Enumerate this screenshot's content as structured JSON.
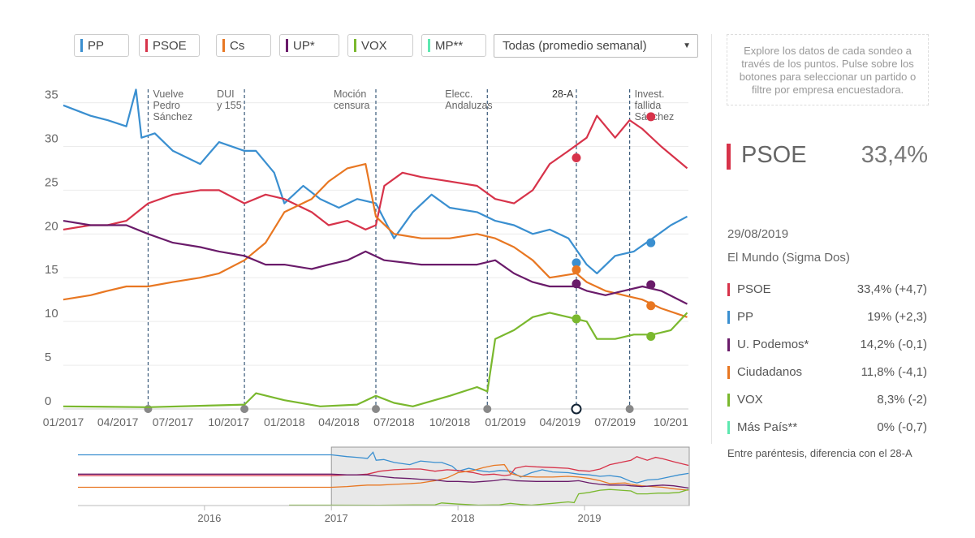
{
  "filters": [
    {
      "label": "PP",
      "color": "#3a8fd0"
    },
    {
      "label": "PSOE",
      "color": "#d7334a"
    },
    {
      "label": "Cs",
      "color": "#e87722"
    },
    {
      "label": "UP*",
      "color": "#6a1b6a"
    },
    {
      "label": "VOX",
      "color": "#7ab82e"
    },
    {
      "label": "MP**",
      "color": "#5de8b0"
    }
  ],
  "select": {
    "value": "Todas (promedio semanal)"
  },
  "help_text": "Explore los datos de cada sondeo a través de los puntos. Pulse sobre los botones para seleccionar un partido o filtre por empresa encuestadora.",
  "highlight": {
    "party": "PSOE",
    "value": "33,4%",
    "color": "#d7334a"
  },
  "poll": {
    "date": "29/08/2019",
    "source": "El Mundo (Sigma Dos)",
    "rows": [
      {
        "name": "PSOE",
        "value": "33,4% (+4,7)",
        "color": "#d7334a"
      },
      {
        "name": "PP",
        "value": "19% (+2,3)",
        "color": "#3a8fd0"
      },
      {
        "name": "U. Podemos*",
        "value": "14,2% (-0,1)",
        "color": "#6a1b6a"
      },
      {
        "name": "Ciudadanos",
        "value": "11,8% (-4,1)",
        "color": "#e87722"
      },
      {
        "name": "VOX",
        "value": "8,3% (-2)",
        "color": "#7ab82e"
      },
      {
        "name": "Más País**",
        "value": "0% (-0,7)",
        "color": "#5de8b0"
      }
    ]
  },
  "note": "Entre paréntesis, diferencia con el 28-A",
  "chart_data": {
    "type": "line",
    "ylim": [
      0,
      37
    ],
    "xlim": [
      "2017-01-01",
      "2019-10-30"
    ],
    "yticks": [
      0,
      5,
      10,
      15,
      20,
      25,
      30,
      35
    ],
    "xticks": [
      {
        "date": "2017-01-01",
        "label": "01/2017"
      },
      {
        "date": "2017-04-01",
        "label": "04/2017"
      },
      {
        "date": "2017-07-01",
        "label": "07/2017"
      },
      {
        "date": "2017-10-01",
        "label": "10/2017"
      },
      {
        "date": "2018-01-01",
        "label": "01/2018"
      },
      {
        "date": "2018-04-01",
        "label": "04/2018"
      },
      {
        "date": "2018-07-01",
        "label": "07/2018"
      },
      {
        "date": "2018-10-01",
        "label": "10/2018"
      },
      {
        "date": "2019-01-01",
        "label": "01/2019"
      },
      {
        "date": "2019-04-01",
        "label": "04/2019"
      },
      {
        "date": "2019-07-01",
        "label": "07/2019"
      },
      {
        "date": "2019-10-01",
        "label": "10/201"
      }
    ],
    "events": [
      {
        "date": "2017-05-21",
        "lines": [
          "Vuelve",
          "Pedro",
          "Sánchez"
        ]
      },
      {
        "date": "2017-10-27",
        "lines": [
          "DUI",
          "y 155"
        ]
      },
      {
        "date": "2018-06-01",
        "lines": [
          "Moción",
          "censura"
        ]
      },
      {
        "date": "2018-12-02",
        "lines": [
          "Elecc.",
          "Andaluzas"
        ]
      },
      {
        "date": "2019-04-28",
        "lines": [
          "28-A"
        ]
      },
      {
        "date": "2019-07-25",
        "lines": [
          "Invest.",
          "fallida",
          "Sánchez"
        ]
      }
    ],
    "series": [
      {
        "name": "PP",
        "color": "#3a8fd0",
        "points": [
          [
            "2017-01-01",
            34.7
          ],
          [
            "2017-02-15",
            33.5
          ],
          [
            "2017-03-15",
            33
          ],
          [
            "2017-04-15",
            32.3
          ],
          [
            "2017-05-01",
            36.5
          ],
          [
            "2017-05-10",
            31
          ],
          [
            "2017-06-01",
            31.5
          ],
          [
            "2017-07-01",
            29.5
          ],
          [
            "2017-08-15",
            28
          ],
          [
            "2017-09-15",
            30.5
          ],
          [
            "2017-10-27",
            29.5
          ],
          [
            "2017-11-15",
            29.5
          ],
          [
            "2017-12-15",
            27
          ],
          [
            "2018-01-01",
            23.5
          ],
          [
            "2018-02-01",
            25.5
          ],
          [
            "2018-03-01",
            24
          ],
          [
            "2018-04-01",
            23
          ],
          [
            "2018-05-01",
            24
          ],
          [
            "2018-06-01",
            23.5
          ],
          [
            "2018-07-01",
            19.5
          ],
          [
            "2018-08-01",
            22.5
          ],
          [
            "2018-09-01",
            24.5
          ],
          [
            "2018-10-01",
            23
          ],
          [
            "2018-11-15",
            22.5
          ],
          [
            "2018-12-15",
            21.5
          ],
          [
            "2019-01-15",
            21
          ],
          [
            "2019-02-15",
            20
          ],
          [
            "2019-03-15",
            20.5
          ],
          [
            "2019-04-15",
            19.5
          ],
          [
            "2019-05-15",
            16.5
          ],
          [
            "2019-06-01",
            15.5
          ],
          [
            "2019-07-01",
            17.5
          ],
          [
            "2019-08-01",
            18
          ],
          [
            "2019-09-01",
            19.5
          ],
          [
            "2019-10-01",
            21
          ],
          [
            "2019-10-28",
            22
          ]
        ]
      },
      {
        "name": "PSOE",
        "color": "#d7334a",
        "points": [
          [
            "2017-01-01",
            20.5
          ],
          [
            "2017-02-15",
            21
          ],
          [
            "2017-03-15",
            21
          ],
          [
            "2017-04-15",
            21.5
          ],
          [
            "2017-05-21",
            23.5
          ],
          [
            "2017-07-01",
            24.5
          ],
          [
            "2017-08-15",
            25
          ],
          [
            "2017-09-15",
            25
          ],
          [
            "2017-10-27",
            23.5
          ],
          [
            "2017-12-01",
            24.5
          ],
          [
            "2018-01-01",
            24
          ],
          [
            "2018-02-15",
            22.5
          ],
          [
            "2018-03-15",
            21
          ],
          [
            "2018-04-15",
            21.5
          ],
          [
            "2018-05-15",
            20.5
          ],
          [
            "2018-06-01",
            21
          ],
          [
            "2018-06-15",
            25.5
          ],
          [
            "2018-07-15",
            27
          ],
          [
            "2018-08-15",
            26.5
          ],
          [
            "2018-10-01",
            26
          ],
          [
            "2018-11-15",
            25.5
          ],
          [
            "2018-12-15",
            24
          ],
          [
            "2019-01-15",
            23.5
          ],
          [
            "2019-02-15",
            25
          ],
          [
            "2019-03-15",
            28
          ],
          [
            "2019-04-15",
            29.5
          ],
          [
            "2019-05-15",
            31
          ],
          [
            "2019-06-01",
            33.5
          ],
          [
            "2019-07-01",
            31
          ],
          [
            "2019-07-25",
            33
          ],
          [
            "2019-08-15",
            32
          ],
          [
            "2019-09-15",
            30
          ],
          [
            "2019-10-28",
            27.5
          ]
        ]
      },
      {
        "name": "Cs",
        "color": "#e87722",
        "points": [
          [
            "2017-01-01",
            12.5
          ],
          [
            "2017-02-15",
            13
          ],
          [
            "2017-03-15",
            13.5
          ],
          [
            "2017-04-15",
            14
          ],
          [
            "2017-05-21",
            14
          ],
          [
            "2017-07-01",
            14.5
          ],
          [
            "2017-08-15",
            15
          ],
          [
            "2017-09-15",
            15.5
          ],
          [
            "2017-10-27",
            17
          ],
          [
            "2017-12-01",
            19
          ],
          [
            "2018-01-01",
            22.5
          ],
          [
            "2018-02-15",
            24
          ],
          [
            "2018-03-15",
            26
          ],
          [
            "2018-04-15",
            27.5
          ],
          [
            "2018-05-15",
            28
          ],
          [
            "2018-06-01",
            22
          ],
          [
            "2018-07-01",
            20
          ],
          [
            "2018-08-15",
            19.5
          ],
          [
            "2018-10-01",
            19.5
          ],
          [
            "2018-11-15",
            20
          ],
          [
            "2018-12-15",
            19.5
          ],
          [
            "2019-01-15",
            18.5
          ],
          [
            "2019-02-15",
            17
          ],
          [
            "2019-03-15",
            15
          ],
          [
            "2019-04-28",
            15.5
          ],
          [
            "2019-05-15",
            14.5
          ],
          [
            "2019-06-15",
            13.5
          ],
          [
            "2019-07-15",
            13
          ],
          [
            "2019-08-15",
            12.5
          ],
          [
            "2019-09-15",
            11.5
          ],
          [
            "2019-10-28",
            10.5
          ]
        ]
      },
      {
        "name": "UP*",
        "color": "#6a1b6a",
        "points": [
          [
            "2017-01-01",
            21.5
          ],
          [
            "2017-02-15",
            21
          ],
          [
            "2017-03-15",
            21
          ],
          [
            "2017-04-15",
            21
          ],
          [
            "2017-05-21",
            20
          ],
          [
            "2017-07-01",
            19
          ],
          [
            "2017-08-15",
            18.5
          ],
          [
            "2017-09-15",
            18
          ],
          [
            "2017-10-27",
            17.5
          ],
          [
            "2017-12-01",
            16.5
          ],
          [
            "2018-01-01",
            16.5
          ],
          [
            "2018-02-15",
            16
          ],
          [
            "2018-03-15",
            16.5
          ],
          [
            "2018-04-15",
            17
          ],
          [
            "2018-05-15",
            18
          ],
          [
            "2018-06-15",
            17
          ],
          [
            "2018-08-15",
            16.5
          ],
          [
            "2018-10-01",
            16.5
          ],
          [
            "2018-11-15",
            16.5
          ],
          [
            "2018-12-15",
            17
          ],
          [
            "2019-01-15",
            15.5
          ],
          [
            "2019-02-15",
            14.5
          ],
          [
            "2019-03-15",
            14
          ],
          [
            "2019-04-28",
            14
          ],
          [
            "2019-05-15",
            13.5
          ],
          [
            "2019-06-15",
            13
          ],
          [
            "2019-07-15",
            13.5
          ],
          [
            "2019-08-15",
            14
          ],
          [
            "2019-09-15",
            13.5
          ],
          [
            "2019-10-28",
            12
          ]
        ]
      },
      {
        "name": "VOX",
        "color": "#7ab82e",
        "points": [
          [
            "2017-01-01",
            0.3
          ],
          [
            "2017-05-21",
            0.2
          ],
          [
            "2017-10-27",
            0.5
          ],
          [
            "2017-11-15",
            1.8
          ],
          [
            "2018-01-01",
            1
          ],
          [
            "2018-03-01",
            0.3
          ],
          [
            "2018-05-01",
            0.5
          ],
          [
            "2018-06-01",
            1.5
          ],
          [
            "2018-07-01",
            0.7
          ],
          [
            "2018-08-01",
            0.3
          ],
          [
            "2018-10-01",
            1.5
          ],
          [
            "2018-11-15",
            2.5
          ],
          [
            "2018-12-02",
            2
          ],
          [
            "2018-12-15",
            8
          ],
          [
            "2019-01-15",
            9
          ],
          [
            "2019-02-15",
            10.5
          ],
          [
            "2019-03-15",
            11
          ],
          [
            "2019-04-15",
            10.5
          ],
          [
            "2019-05-15",
            10
          ],
          [
            "2019-06-01",
            8
          ],
          [
            "2019-07-01",
            8
          ],
          [
            "2019-08-01",
            8.5
          ],
          [
            "2019-09-01",
            8.5
          ],
          [
            "2019-10-01",
            9
          ],
          [
            "2019-10-28",
            11
          ]
        ]
      }
    ],
    "minimap": {
      "xticks": [
        {
          "date": "2016-01-01",
          "label": "2016"
        },
        {
          "date": "2017-01-01",
          "label": "2017"
        },
        {
          "date": "2018-01-01",
          "label": "2018"
        },
        {
          "date": "2019-01-01",
          "label": "2019"
        }
      ],
      "range": [
        "2015-01-01",
        "2019-10-30"
      ],
      "window": [
        "2017-01-01",
        "2019-10-30"
      ]
    }
  }
}
